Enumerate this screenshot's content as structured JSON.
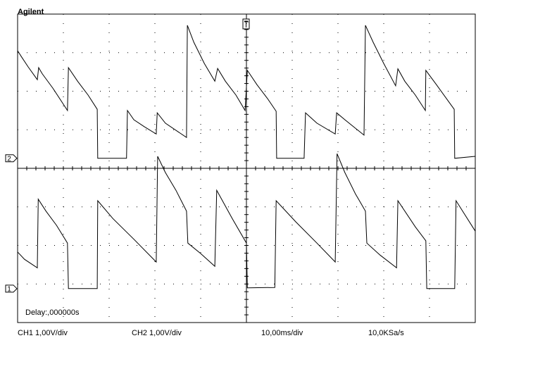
{
  "chart_data": {
    "type": "line",
    "title": "Agilent",
    "annotation": "Delay:,000000s",
    "footer": [
      "CH1 1,00V/div",
      "CH2 1,00V/div",
      "10,00ms/div",
      "10,0KSa/s"
    ],
    "xlim": [
      0,
      100
    ],
    "ylim": [
      0,
      8
    ],
    "xticks": [
      0,
      10,
      20,
      30,
      40,
      50,
      60,
      70,
      80,
      90,
      100
    ],
    "yticks": [
      0,
      1,
      2,
      3,
      4,
      5,
      6,
      7,
      8
    ],
    "grid": true,
    "series": [
      {
        "name": "2",
        "color": "#000000",
        "ground": 4.26,
        "x": [
          0,
          0.8,
          2.3,
          4.3,
          4.6,
          5.4,
          7.7,
          10.9,
          11.1,
          13.1,
          15.4,
          17.4,
          17.5,
          23.8,
          24.0,
          25.4,
          27.7,
          30.3,
          30.5,
          32.3,
          36.9,
          37.1,
          38.5,
          40.8,
          43.1,
          43.7,
          45.4,
          47.7,
          49.7,
          50.2,
          52.3,
          54.6,
          56.5,
          56.6,
          62.6,
          62.9,
          65.4,
          69.4,
          69.7,
          71.5,
          75.7,
          76.0,
          77.7,
          80.0,
          82.6,
          83.1,
          84.6,
          86.9,
          89.1,
          89.2,
          91.5,
          95.4,
          95.5,
          100
        ],
        "values": [
          7.05,
          6.9,
          6.63,
          6.3,
          6.61,
          6.45,
          6.08,
          5.5,
          6.61,
          6.26,
          5.9,
          5.53,
          4.26,
          4.26,
          5.5,
          5.26,
          5.08,
          4.89,
          5.44,
          5.17,
          4.8,
          7.71,
          7.27,
          6.72,
          6.26,
          6.59,
          6.26,
          5.9,
          5.5,
          6.54,
          6.17,
          5.81,
          5.48,
          4.26,
          4.26,
          5.44,
          5.17,
          4.89,
          5.44,
          5.26,
          4.86,
          7.71,
          7.27,
          6.72,
          6.14,
          6.58,
          6.26,
          5.9,
          5.5,
          6.54,
          6.17,
          5.53,
          4.26,
          4.31
        ]
      },
      {
        "name": "1",
        "color": "#000000",
        "ground": 0.88,
        "x": [
          0,
          1.5,
          4.3,
          4.5,
          6.2,
          8.5,
          10.9,
          11.1,
          17.4,
          17.5,
          20.8,
          25.4,
          30.3,
          30.6,
          32.3,
          34.6,
          36.9,
          37.2,
          40.0,
          43.1,
          43.5,
          46.9,
          50.0,
          50.2,
          56.2,
          56.5,
          60.8,
          65.4,
          69.4,
          69.8,
          71.5,
          73.8,
          76.0,
          76.3,
          79.2,
          82.8,
          83.1,
          86.9,
          89.2,
          89.4,
          95.5,
          95.8,
          100
        ],
        "values": [
          1.83,
          1.64,
          1.42,
          3.2,
          2.89,
          2.52,
          2.06,
          0.88,
          0.88,
          3.16,
          2.7,
          2.16,
          1.57,
          4.31,
          3.89,
          3.43,
          2.89,
          2.06,
          1.79,
          1.46,
          3.43,
          2.7,
          2.06,
          0.9,
          0.91,
          3.16,
          2.61,
          2.06,
          1.57,
          4.38,
          3.89,
          3.34,
          2.89,
          2.06,
          1.75,
          1.42,
          3.16,
          2.48,
          2.12,
          0.88,
          0.88,
          3.16,
          2.37
        ]
      }
    ]
  }
}
